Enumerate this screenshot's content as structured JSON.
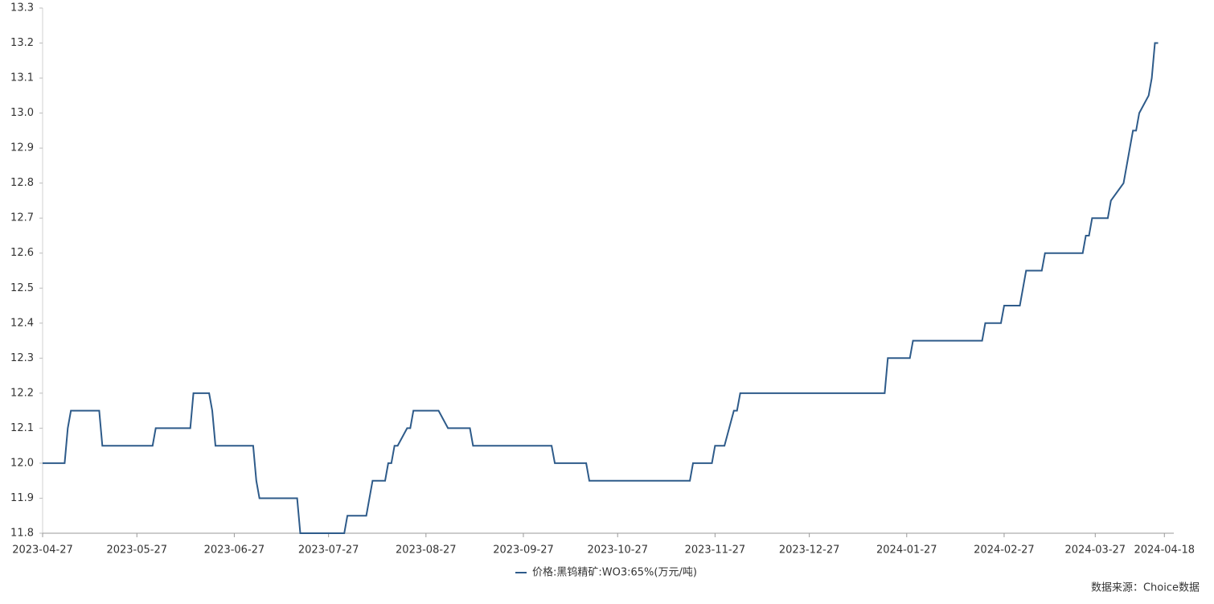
{
  "chart_data": {
    "type": "line",
    "x": [
      "2023-04-27",
      "2023-05-04",
      "2023-05-05",
      "2023-05-06",
      "2023-05-15",
      "2023-05-16",
      "2023-06-01",
      "2023-06-02",
      "2023-06-13",
      "2023-06-14",
      "2023-06-19",
      "2023-06-20",
      "2023-06-21",
      "2023-07-03",
      "2023-07-04",
      "2023-07-05",
      "2023-07-17",
      "2023-07-18",
      "2023-08-01",
      "2023-08-02",
      "2023-08-08",
      "2023-08-10",
      "2023-08-14",
      "2023-08-15",
      "2023-08-16",
      "2023-08-17",
      "2023-08-18",
      "2023-08-21",
      "2023-08-22",
      "2023-08-23",
      "2023-08-31",
      "2023-09-03",
      "2023-09-10",
      "2023-09-11",
      "2023-10-06",
      "2023-10-07",
      "2023-10-17",
      "2023-10-18",
      "2023-11-19",
      "2023-11-20",
      "2023-11-26",
      "2023-11-27",
      "2023-11-30",
      "2023-12-03",
      "2023-12-04",
      "2023-12-05",
      "2024-01-20",
      "2024-01-21",
      "2024-01-28",
      "2024-01-29",
      "2024-02-20",
      "2024-02-21",
      "2024-02-26",
      "2024-02-27",
      "2024-03-03",
      "2024-03-04",
      "2024-03-05",
      "2024-03-10",
      "2024-03-11",
      "2024-03-23",
      "2024-03-24",
      "2024-03-25",
      "2024-03-26",
      "2024-03-31",
      "2024-04-01",
      "2024-04-05",
      "2024-04-08",
      "2024-04-09",
      "2024-04-10",
      "2024-04-13",
      "2024-04-14",
      "2024-04-15",
      "2024-04-16"
    ],
    "series": [
      {
        "name": "价格:黑钨精矿:WO3:65%(万元/吨)",
        "color": "#2e5b8a",
        "values": [
          12.0,
          12.0,
          12.1,
          12.15,
          12.15,
          12.05,
          12.05,
          12.1,
          12.1,
          12.2,
          12.2,
          12.15,
          12.05,
          12.05,
          11.95,
          11.9,
          11.9,
          11.8,
          11.8,
          11.85,
          11.85,
          11.95,
          11.95,
          12.0,
          12.0,
          12.05,
          12.05,
          12.1,
          12.1,
          12.15,
          12.15,
          12.1,
          12.1,
          12.05,
          12.05,
          12.0,
          12.0,
          11.95,
          11.95,
          12.0,
          12.0,
          12.05,
          12.05,
          12.15,
          12.15,
          12.2,
          12.2,
          12.3,
          12.3,
          12.35,
          12.35,
          12.4,
          12.4,
          12.45,
          12.45,
          12.5,
          12.55,
          12.55,
          12.6,
          12.6,
          12.65,
          12.65,
          12.7,
          12.7,
          12.75,
          12.8,
          12.95,
          12.95,
          13.0,
          13.05,
          13.1,
          13.2,
          13.2
        ]
      }
    ],
    "xlim": [
      "2023-04-27",
      "2024-04-21"
    ],
    "xticks": [
      "2023-04-27",
      "2023-05-27",
      "2023-06-27",
      "2023-07-27",
      "2023-08-27",
      "2023-09-27",
      "2023-10-27",
      "2023-11-27",
      "2023-12-27",
      "2024-01-27",
      "2024-02-27",
      "2024-03-27",
      "2024-04-18"
    ],
    "ylim": [
      11.8,
      13.3
    ],
    "yticks": [
      11.8,
      11.9,
      {
        "value": 12,
        "label": "12.0"
      },
      12.1,
      12.2,
      12.3,
      12.4,
      12.5,
      12.6,
      12.7,
      12.8,
      12.9,
      {
        "value": 13,
        "label": "13.0"
      },
      13.1,
      13.2,
      13.3
    ],
    "grid": false,
    "legend": "bottom",
    "source": "数据来源：Choice数据"
  }
}
